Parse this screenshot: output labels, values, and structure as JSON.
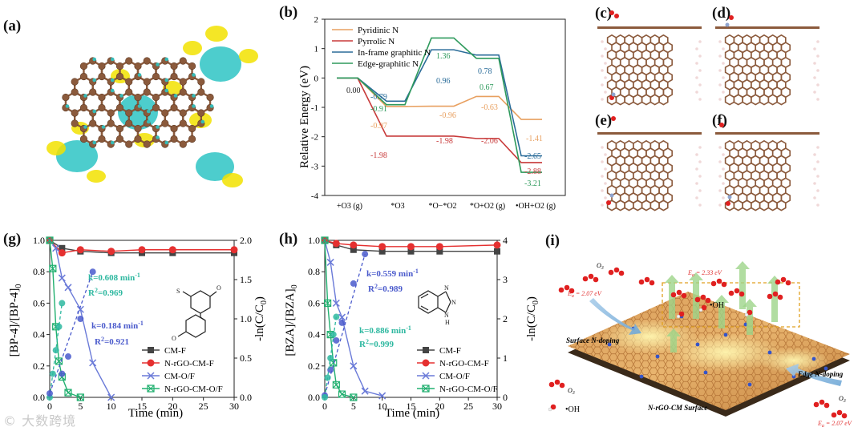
{
  "panels": {
    "a": "(a)",
    "b": "(b)",
    "c": "(c)",
    "d": "(d)",
    "e": "(e)",
    "f": "(f)",
    "g": "(g)",
    "h": "(h)",
    "i": "(i)"
  },
  "colors": {
    "carbon": "#8b5a3c",
    "hydrogen": "#f0d8d8",
    "oxygen": "#e02020",
    "nitrogen": "#8fa4cf",
    "yellow": "#f2e200",
    "cyan": "#2ec4c4",
    "pyridinic": "#e8a060",
    "pyrrolic": "#c83a3a",
    "inframe": "#2a6c99",
    "edge": "#2e9a5c",
    "cmf": "#444444",
    "nrgocmf": "#e53030",
    "cmof": "#6a7ad8",
    "nrgocmof": "#22b070",
    "fit1": "#2eb8a0",
    "fit2": "#4a5acc"
  },
  "chart_data": [
    {
      "id": "b",
      "type": "line",
      "ylabel": "Relative Energy (eV)",
      "ylim": [
        -4,
        2
      ],
      "yticks": [
        "-4",
        "-3",
        "-2",
        "-1",
        "0",
        "1",
        "2"
      ],
      "categories": [
        "+O3 (g)",
        "*O3",
        "*O−*O2",
        "*O+O2 (g)",
        "•OH+O2 (g)"
      ],
      "series": [
        {
          "name": "Pyridinic N",
          "values": [
            0,
            -0.97,
            -0.96,
            -0.63,
            -1.41
          ],
          "labels": [
            "",
            "-0.97",
            "-0.96",
            "-0.63",
            "-1.41"
          ]
        },
        {
          "name": "Pyrrolic N",
          "values": [
            0,
            -1.98,
            -1.98,
            -2.06,
            -2.88
          ],
          "labels": [
            "",
            "-1.98",
            "-1.98",
            "-2.06",
            "-2.88"
          ]
        },
        {
          "name": "In-frame graphitic N",
          "values": [
            0,
            -0.79,
            0.96,
            0.78,
            -2.65
          ],
          "labels": [
            "",
            "-0.79",
            "0.96",
            "0.78",
            "-2.65"
          ]
        },
        {
          "name": "Edge-graphitic N",
          "values": [
            0,
            -0.91,
            1.36,
            0.67,
            -3.21
          ],
          "labels": [
            "0.00",
            "-0.91",
            "1.36",
            "0.67",
            "-3.21"
          ]
        }
      ]
    },
    {
      "id": "g",
      "type": "scatter",
      "xlabel": "Time (min)",
      "ylabel": "[BP-4]/[BP-4]",
      "ylabel_sub": "0",
      "y2label": "-ln(C/C",
      "y2label_sub": "0",
      "xlim": [
        0,
        30
      ],
      "ylim": [
        0,
        1
      ],
      "y2lim": [
        0,
        2
      ],
      "xticks": [
        "0",
        "5",
        "10",
        "15",
        "20",
        "25",
        "30"
      ],
      "yticks": [
        "0.0",
        "0.2",
        "0.4",
        "0.6",
        "0.8",
        "1.0"
      ],
      "y2ticks": [
        "0.0",
        "0.5",
        "1.0",
        "1.5",
        "2.0"
      ],
      "series": [
        {
          "name": "CM-F",
          "x": [
            0,
            2,
            5,
            10,
            15,
            20,
            30
          ],
          "y": [
            1.0,
            0.95,
            0.93,
            0.92,
            0.92,
            0.92,
            0.92
          ]
        },
        {
          "name": "N-rGO-CM-F",
          "x": [
            0,
            2,
            5,
            10,
            15,
            20,
            30
          ],
          "y": [
            1.0,
            0.92,
            0.94,
            0.93,
            0.94,
            0.94,
            0.94
          ]
        },
        {
          "name": "CM-O/F",
          "x": [
            0,
            1,
            2,
            3,
            5,
            7,
            10
          ],
          "y": [
            1.0,
            0.95,
            0.76,
            0.7,
            0.56,
            0.22,
            0.0
          ]
        },
        {
          "name": "N-rGO-CM-O/F",
          "x": [
            0,
            0.5,
            1,
            1.5,
            2,
            3,
            5
          ],
          "y": [
            1.0,
            0.82,
            0.45,
            0.23,
            0.13,
            0.03,
            0.0
          ]
        }
      ],
      "fits": [
        {
          "k": "k=0.608 min",
          "unit": "-1",
          "r2": "R",
          "r2_val": "=0.969",
          "x": [
            0,
            0.5,
            1,
            1.5,
            2
          ],
          "y2": [
            0.0,
            0.3,
            0.6,
            0.9,
            1.2
          ]
        },
        {
          "k": "k=0.184 min",
          "unit": "-1",
          "r2": "R",
          "r2_val": "=0.921",
          "x": [
            0,
            2,
            3,
            5,
            7
          ],
          "y2": [
            0.05,
            0.3,
            0.52,
            1.0,
            1.6
          ]
        }
      ]
    },
    {
      "id": "h",
      "type": "scatter",
      "xlabel": "Time (min)",
      "ylabel": "[BZA]/[BZA]",
      "ylabel_sub": "0",
      "y2label": "-ln(C/C",
      "y2label_sub": "0",
      "xlim": [
        0,
        30
      ],
      "ylim": [
        0,
        1
      ],
      "y2lim": [
        0,
        4
      ],
      "xticks": [
        "0",
        "5",
        "10",
        "15",
        "20",
        "25",
        "30"
      ],
      "yticks": [
        "0.0",
        "0.2",
        "0.4",
        "0.6",
        "0.8",
        "1.0"
      ],
      "y2ticks": [
        "0",
        "1",
        "2",
        "3",
        "4"
      ],
      "series": [
        {
          "name": "CM-F",
          "x": [
            0,
            2,
            5,
            10,
            15,
            20,
            30
          ],
          "y": [
            1.0,
            0.97,
            0.94,
            0.93,
            0.93,
            0.93,
            0.93
          ]
        },
        {
          "name": "N-rGO-CM-F",
          "x": [
            0,
            2,
            5,
            10,
            15,
            20,
            30
          ],
          "y": [
            1.0,
            0.98,
            0.97,
            0.96,
            0.96,
            0.96,
            0.97
          ]
        },
        {
          "name": "CM-O/F",
          "x": [
            0,
            1,
            2,
            3,
            5,
            7,
            10
          ],
          "y": [
            1.0,
            0.86,
            0.6,
            0.51,
            0.2,
            0.04,
            0.01
          ]
        },
        {
          "name": "N-rGO-CM-O/F",
          "x": [
            0,
            0.5,
            1,
            1.5,
            2,
            3,
            5
          ],
          "y": [
            1.0,
            0.6,
            0.4,
            0.22,
            0.08,
            0.02,
            0.0
          ]
        }
      ],
      "fits": [
        {
          "k": "k=0.559 min",
          "unit": "-1",
          "r2": "R",
          "r2_val": "=0.989",
          "x": [
            0,
            1,
            2,
            3,
            5,
            7
          ],
          "y2": [
            0.05,
            0.7,
            1.45,
            1.9,
            2.9,
            3.65
          ]
        },
        {
          "k": "k=0.886 min",
          "unit": "-1",
          "r2": "R",
          "r2_val": "=0.999",
          "x": [
            0,
            0.5,
            1,
            1.5,
            2
          ],
          "y2": [
            0.0,
            0.5,
            1.0,
            1.6,
            2.05
          ]
        }
      ]
    }
  ],
  "bz_struct": {
    "n1": "N",
    "n2": "N",
    "n3": "N",
    "h": "H"
  },
  "bp4_struct": {
    "s": "S",
    "o1": "O",
    "o2": "O"
  },
  "panel_i": {
    "o3_top": "O",
    "o3_top_sub": "3",
    "ea_top": "E",
    "ea_top_sub": "a",
    "ea_top_val": " = 2.33 eV",
    "oh_box": "•OH",
    "ea_left": "E",
    "ea_left_sub": "a",
    "ea_left_val": " = 2.07 eV",
    "surface": "Surface N-doping",
    "edge": "Edge N-doping",
    "o3_right": "O",
    "o3_right_sub": "3",
    "ea_right": "E",
    "ea_right_sub": "a",
    "ea_right_val": " = 2.07 eV",
    "o3_left_bot": "O",
    "o3_left_bot_sub": "3",
    "oh_left_bot": "•OH",
    "sheet": "N-rGO-CM Surface"
  },
  "watermark": "© 大数跨境"
}
